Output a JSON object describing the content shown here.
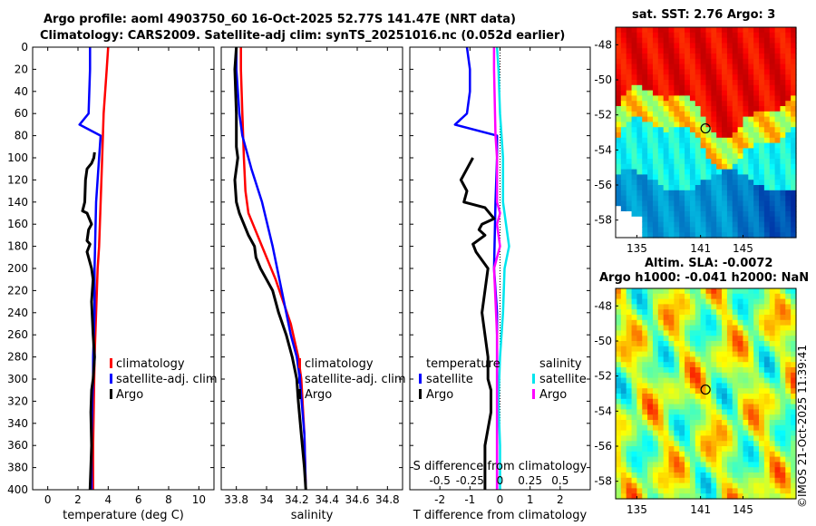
{
  "header": {
    "title_line1": "Argo profile: aoml 4903750_60 16-Oct-2025 52.77S 141.47E (NRT data)",
    "title_line2": "Climatology: CARS2009. Satellite-adj clim: synTS_20251016.nc (0.052d earlier)"
  },
  "sst_panel": {
    "title": "sat. SST: 2.76 Argo: 3"
  },
  "sla_panel": {
    "title1": "Altim. SLA: -0.0072",
    "title2": "Argo h1000: -0.041 h2000: NaN"
  },
  "stamp": "©IMOS 21-Oct-2025 11:39:41",
  "colors": {
    "climatology": "#ff0000",
    "satellite": "#0000ff",
    "argo": "#000000",
    "sat_salinity": "#00e5ee",
    "argo_salinity": "#ff00ff"
  },
  "chart_data": [
    {
      "type": "line",
      "name": "temperature",
      "xlabel": "temperature (deg C)",
      "xlim": [
        -1,
        11
      ],
      "ylim": [
        400,
        0
      ],
      "xticks": [
        0,
        2,
        4,
        6,
        8,
        10
      ],
      "xtick_labels": [
        "0",
        "2",
        "4",
        "6",
        "8",
        "10"
      ],
      "yticks": [
        0,
        20,
        40,
        60,
        80,
        100,
        120,
        140,
        160,
        180,
        200,
        220,
        240,
        260,
        280,
        300,
        320,
        340,
        360,
        380,
        400
      ],
      "ytick_labels": [
        "0",
        "20",
        "40",
        "60",
        "80",
        "100",
        "120",
        "140",
        "160",
        "180",
        "200",
        "220",
        "240",
        "260",
        "280",
        "300",
        "320",
        "340",
        "360",
        "380",
        "400"
      ],
      "legend": [
        {
          "label": "climatology",
          "color": "#ff0000"
        },
        {
          "label": "satellite-adj. clim",
          "color": "#0000ff"
        },
        {
          "label": "Argo",
          "color": "#000000"
        }
      ],
      "series": [
        {
          "name": "climatology",
          "color": "#ff0000",
          "width": 2.5,
          "x": [
            4.0,
            3.9,
            3.7,
            3.6,
            3.5,
            3.4,
            3.3,
            3.2,
            3.1,
            3.05,
            3.0,
            3.0
          ],
          "y": [
            0,
            20,
            60,
            100,
            140,
            180,
            200,
            240,
            280,
            320,
            360,
            400
          ]
        },
        {
          "name": "satellite-adj. clim",
          "color": "#0000ff",
          "width": 2.5,
          "x": [
            2.8,
            2.8,
            2.75,
            2.7,
            2.1,
            3.5,
            3.4,
            3.2,
            3.1,
            3.1,
            3.0,
            3.0,
            2.95,
            2.9,
            2.9
          ],
          "y": [
            0,
            20,
            40,
            60,
            70,
            80,
            100,
            140,
            200,
            240,
            280,
            300,
            320,
            360,
            400
          ]
        },
        {
          "name": "Argo",
          "color": "#000000",
          "width": 3,
          "x": [
            3.1,
            3.05,
            2.9,
            2.6,
            2.5,
            2.45,
            2.3,
            2.6,
            2.9,
            2.7,
            2.6,
            2.8,
            2.6,
            2.9,
            3.0,
            2.9,
            3.0,
            3.1,
            3.0,
            2.9,
            2.85,
            2.9,
            2.85,
            2.8
          ],
          "y": [
            95,
            100,
            105,
            110,
            120,
            140,
            148,
            150,
            160,
            165,
            175,
            178,
            185,
            200,
            210,
            230,
            260,
            280,
            300,
            310,
            330,
            360,
            380,
            400
          ]
        }
      ]
    },
    {
      "type": "line",
      "name": "salinity",
      "xlabel": "salinity",
      "xlim": [
        33.7,
        34.9
      ],
      "ylim": [
        400,
        0
      ],
      "xticks": [
        33.8,
        34.0,
        34.2,
        34.4,
        34.6,
        34.8
      ],
      "xtick_labels": [
        "33.8",
        "34",
        "34.2",
        "34.4",
        "34.6",
        "34.8"
      ],
      "legend": [
        {
          "label": "climatology",
          "color": "#ff0000"
        },
        {
          "label": "satellite-adj. clim",
          "color": "#0000ff"
        },
        {
          "label": "Argo",
          "color": "#000000"
        }
      ],
      "series": [
        {
          "name": "climatology",
          "color": "#ff0000",
          "width": 2.5,
          "x": [
            33.83,
            33.83,
            33.84,
            33.85,
            33.86,
            33.88,
            33.91,
            33.97,
            34.06,
            34.16,
            34.21,
            34.23,
            34.25,
            34.26
          ],
          "y": [
            0,
            20,
            60,
            100,
            130,
            150,
            160,
            180,
            210,
            250,
            280,
            300,
            350,
            400
          ]
        },
        {
          "name": "satellite-adj. clim",
          "color": "#0000ff",
          "width": 2.5,
          "x": [
            33.8,
            33.8,
            33.82,
            33.84,
            33.9,
            33.97,
            34.04,
            34.1,
            34.16,
            34.2,
            34.22,
            34.25,
            34.26
          ],
          "y": [
            0,
            20,
            60,
            80,
            110,
            140,
            180,
            220,
            260,
            280,
            300,
            350,
            400
          ]
        },
        {
          "name": "Argo",
          "color": "#000000",
          "width": 3,
          "x": [
            33.8,
            33.79,
            33.8,
            33.8,
            33.81,
            33.79,
            33.8,
            33.82,
            33.85,
            33.88,
            33.92,
            33.93,
            33.96,
            34.0,
            34.04,
            34.08,
            34.13,
            34.17,
            34.2,
            34.21,
            34.23,
            34.25,
            34.26
          ],
          "y": [
            0,
            20,
            60,
            90,
            100,
            120,
            140,
            150,
            160,
            170,
            180,
            190,
            200,
            210,
            220,
            240,
            260,
            280,
            300,
            320,
            350,
            380,
            400
          ]
        }
      ]
    },
    {
      "type": "line",
      "name": "difference",
      "xlabel": "T difference from climatology",
      "top_label": "S difference from climatology",
      "xlim": [
        -3,
        3
      ],
      "ylim": [
        400,
        0
      ],
      "xticks": [
        -2,
        -1,
        0,
        1,
        2
      ],
      "xtick_labels": [
        "-2",
        "-1",
        "0",
        "1",
        "2"
      ],
      "top_ticks": [
        -2,
        -1,
        0,
        1,
        2
      ],
      "top_tick_labels": [
        "-0.5",
        "-0.25",
        "0",
        "0.25",
        "0.5"
      ],
      "legend_temperature": {
        "header": "temperature",
        "items": [
          {
            "label": "satellite",
            "color": "#0000ff"
          },
          {
            "label": "Argo",
            "color": "#000000"
          }
        ]
      },
      "legend_salinity": {
        "header": "salinity",
        "items": [
          {
            "label": "satellite",
            "color": "#00e5ee"
          },
          {
            "label": "Argo",
            "color": "#ff00ff"
          }
        ]
      },
      "series": [
        {
          "name": "T satellite",
          "color": "#0000ff",
          "width": 2.5,
          "x": [
            -1.1,
            -1.0,
            -1.0,
            -1.1,
            -1.5,
            -0.1,
            -0.1,
            -0.15,
            -0.2,
            -0.1,
            -0.1,
            -0.1,
            -0.1,
            -0.1
          ],
          "y": [
            0,
            20,
            40,
            60,
            70,
            80,
            100,
            140,
            200,
            240,
            300,
            320,
            360,
            400
          ]
        },
        {
          "name": "S satellite",
          "color": "#00e5ee",
          "width": 2.5,
          "x": [
            -0.1,
            -0.05,
            0.0,
            0.1,
            0.1,
            0.2,
            0.3,
            0.15,
            0.1,
            0.0,
            -0.05,
            0.0,
            0.0
          ],
          "y": [
            0,
            20,
            60,
            100,
            140,
            160,
            180,
            200,
            240,
            280,
            320,
            360,
            400
          ]
        },
        {
          "name": "S Argo",
          "color": "#ff00ff",
          "width": 2.5,
          "x": [
            -0.2,
            -0.2,
            -0.15,
            -0.1,
            -0.1,
            0.0,
            -0.1,
            -0.05,
            0.0,
            -0.2,
            -0.1,
            -0.1,
            -0.1,
            -0.1
          ],
          "y": [
            0,
            20,
            80,
            100,
            140,
            150,
            160,
            170,
            180,
            200,
            260,
            300,
            350,
            400
          ]
        },
        {
          "name": "T Argo",
          "color": "#000000",
          "width": 3,
          "x": [
            -0.9,
            -1.1,
            -1.3,
            -1.1,
            -1.2,
            -0.5,
            -0.2,
            -0.6,
            -0.7,
            -0.5,
            -0.9,
            -0.8,
            -0.4,
            -0.5,
            -0.6,
            -0.5,
            -0.4,
            -0.4,
            -0.3,
            -0.3,
            -0.5,
            -0.5
          ],
          "y": [
            100,
            110,
            120,
            130,
            140,
            145,
            155,
            160,
            165,
            170,
            178,
            185,
            200,
            220,
            240,
            260,
            280,
            300,
            310,
            330,
            360,
            400
          ]
        }
      ]
    },
    {
      "type": "heatmap",
      "name": "sat_sst_map",
      "title": "sat. SST: 2.76 Argo: 3",
      "xlim": [
        133,
        150
      ],
      "ylim": [
        -59,
        -47
      ],
      "xticks": [
        135,
        141,
        145
      ],
      "xtick_labels": [
        "135",
        "141",
        "145"
      ],
      "yticks": [
        -48,
        -50,
        -52,
        -54,
        -56,
        -58
      ],
      "ytick_labels": [
        "-48",
        "-50",
        "-52",
        "-54",
        "-56",
        "-58"
      ],
      "marker": {
        "lon": 141.47,
        "lat": -52.77
      }
    },
    {
      "type": "heatmap",
      "name": "altim_sla_map",
      "title": "Altim. SLA: -0.0072",
      "xlim": [
        133,
        150
      ],
      "ylim": [
        -59,
        -47
      ],
      "xticks": [
        135,
        141,
        145
      ],
      "xtick_labels": [
        "135",
        "141",
        "145"
      ],
      "yticks": [
        -48,
        -50,
        -52,
        -54,
        -56,
        -58
      ],
      "ytick_labels": [
        "-48",
        "-50",
        "-52",
        "-54",
        "-56",
        "-58"
      ],
      "marker": {
        "lon": 141.47,
        "lat": -52.77
      }
    }
  ]
}
